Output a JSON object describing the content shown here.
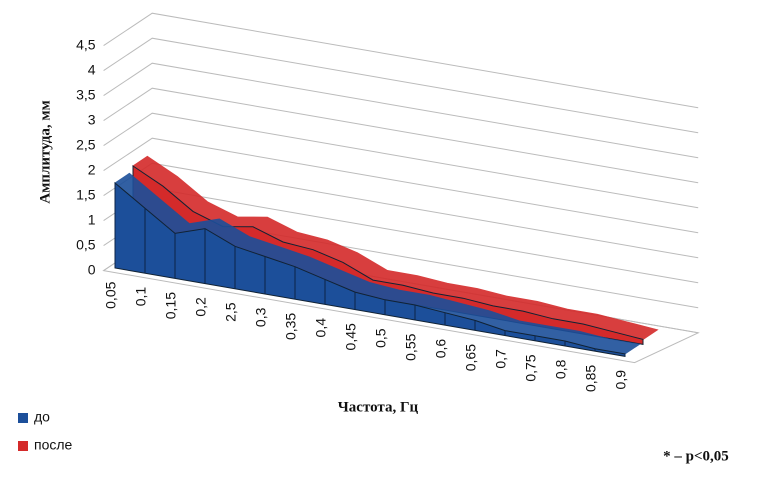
{
  "chart_data": {
    "type": "area3d",
    "y_label": "Амплитуда, мм",
    "x_label": "Частота, Гц",
    "note": "* – p<0,05",
    "categories": [
      "0,05",
      "0,1",
      "0,15",
      "0,2",
      "2,5",
      "0,3",
      "0,35",
      "0,4",
      "0,45",
      "0,5",
      "0,55",
      "0,6",
      "0,65",
      "0,7",
      "0,75",
      "0,8",
      "0,85",
      "0,9"
    ],
    "series": [
      {
        "name": "до",
        "color": "#1c4f9a",
        "values": [
          1.7,
          1.3,
          0.9,
          1.1,
          0.85,
          0.75,
          0.65,
          0.5,
          0.35,
          0.3,
          0.3,
          0.25,
          0.2,
          0.1,
          0.1,
          0.1,
          0.05,
          0.05
        ]
      },
      {
        "name": "после",
        "color": "#d42a2a",
        "values": [
          1.8,
          1.5,
          1.1,
          0.9,
          1.0,
          0.8,
          0.75,
          0.6,
          0.35,
          0.35,
          0.3,
          0.3,
          0.25,
          0.25,
          0.2,
          0.2,
          0.15,
          0.1
        ]
      }
    ],
    "ylim": [
      0,
      4.5
    ],
    "yticks": [
      0,
      {
        "value": 0.5,
        "label": "0,5"
      },
      1,
      {
        "value": 1.5,
        "label": "1,5"
      },
      2,
      {
        "value": 2.5,
        "label": "2,5"
      },
      3,
      {
        "value": 3.5,
        "label": "3,5"
      },
      4,
      {
        "value": 4.5,
        "label": "4,5"
      }
    ],
    "grid": true
  }
}
